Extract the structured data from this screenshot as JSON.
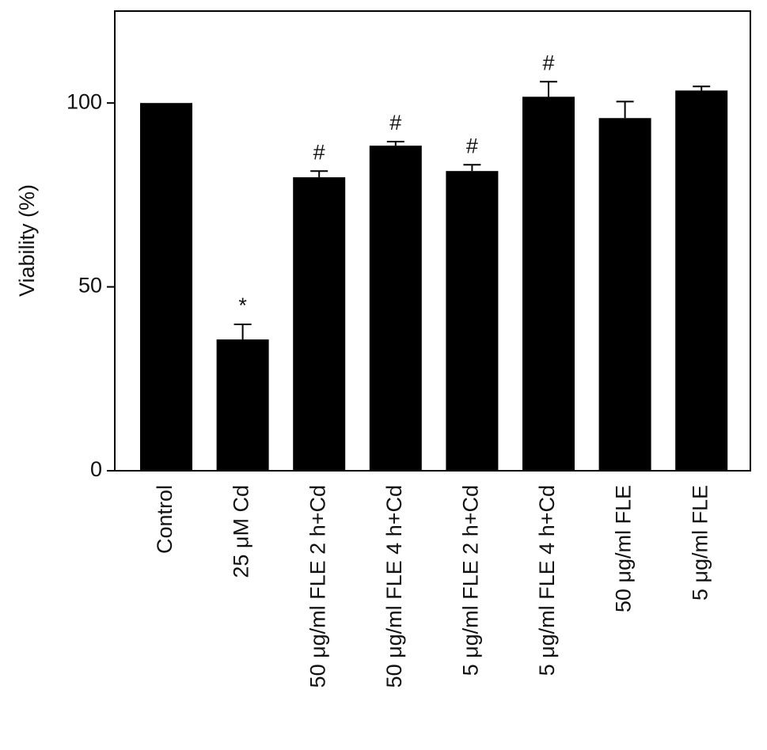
{
  "chart_data": {
    "type": "bar",
    "y_label": "Viability (%)",
    "categories": [
      "Control",
      "25 μM Cd",
      "50 μg/ml FLE 2 h+Cd",
      "50 μg/ml FLE 4 h+Cd",
      "5 μg/ml FLE 2 h+Cd",
      "5 μg/ml FLE 4 h+Cd",
      "50 μg/ml FLE",
      "5 μg/ml FLE"
    ],
    "values": [
      100,
      35.7,
      79.8,
      88.4,
      81.5,
      101.7,
      95.9,
      103.4
    ],
    "errors": [
      0,
      4.1,
      1.7,
      1.1,
      1.7,
      4.1,
      4.5,
      1.1
    ],
    "annotations": [
      null,
      "*",
      "#",
      "#",
      "#",
      "#",
      null,
      null
    ],
    "color": "#000000",
    "ylim": [
      0,
      125
    ],
    "yticks": [
      0,
      50,
      100
    ],
    "grid": false
  }
}
